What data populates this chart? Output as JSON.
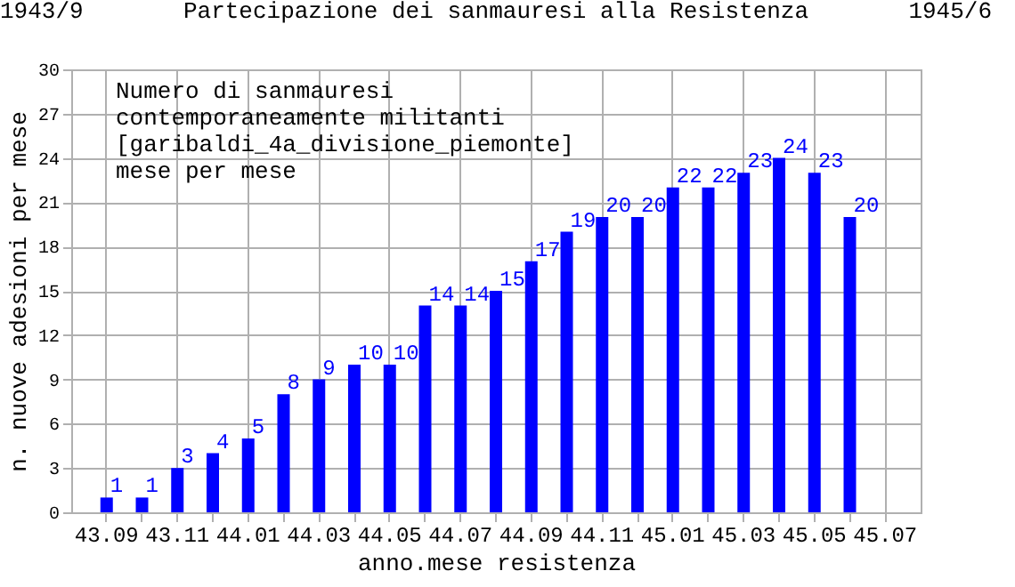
{
  "chart_data": {
    "type": "bar",
    "title": "Partecipazione dei sanmauresi alla Resistenza",
    "xlabel": "anno.mese resistenza",
    "ylabel": "n. nuove adesioni per mese",
    "annotations": [
      "1943/9",
      "1945/6",
      "Numero di sanmauresi\ncontemporaneamente militanti\n[garibaldi_4a_divisione_piemonte]\nmese per mese"
    ],
    "categories": [
      "43.09",
      null,
      "43.11",
      null,
      "44.01",
      null,
      "44.03",
      null,
      "44.05",
      null,
      "44.07",
      null,
      "44.09",
      null,
      "44.11",
      null,
      "45.01",
      null,
      "45.03",
      null,
      "45.05",
      null,
      "45.07"
    ],
    "values": [
      1,
      1,
      3,
      4,
      5,
      8,
      9,
      10,
      10,
      14,
      14,
      15,
      17,
      19,
      20,
      20,
      22,
      22,
      23,
      24,
      23,
      20,
      0
    ],
    "value_labels": [
      "1",
      "1",
      "3",
      "4",
      "5",
      "8",
      "9",
      "10",
      "10",
      "14",
      "14",
      "15",
      "17",
      "19",
      "20",
      "20",
      "22",
      "22",
      "23",
      "24",
      "23",
      "20",
      null
    ],
    "color": "#0000ff",
    "ylim": [
      0,
      30
    ],
    "yticks": [
      0,
      3,
      6,
      9,
      12,
      15,
      18,
      21,
      24,
      27,
      30
    ],
    "grid": true
  }
}
